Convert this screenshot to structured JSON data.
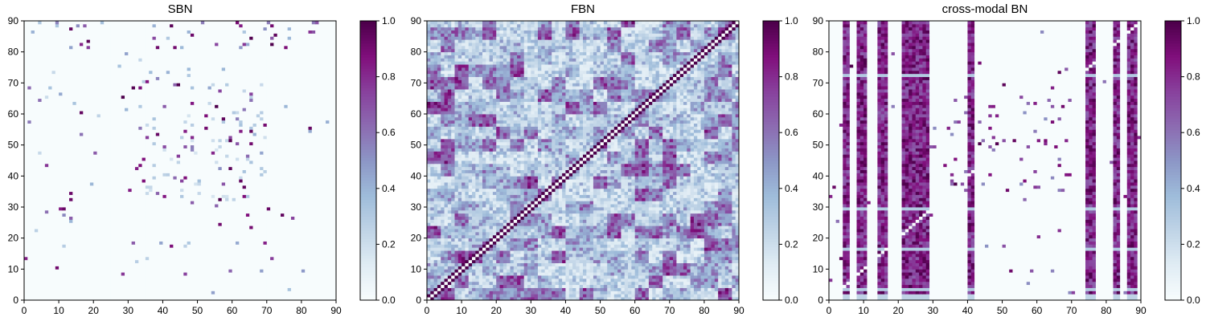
{
  "figure": {
    "background": "#ffffff"
  },
  "colormap": {
    "name": "BuPu",
    "stops": [
      [
        0.0,
        "#f7fcfd"
      ],
      [
        0.125,
        "#e0ecf4"
      ],
      [
        0.25,
        "#bfd3e6"
      ],
      [
        0.375,
        "#9ebcda"
      ],
      [
        0.5,
        "#8c96c6"
      ],
      [
        0.625,
        "#8c6bb1"
      ],
      [
        0.75,
        "#88419d"
      ],
      [
        0.875,
        "#810f7c"
      ],
      [
        1.0,
        "#4d004b"
      ]
    ]
  },
  "chart_data": [
    {
      "type": "heatmap",
      "title": "SBN",
      "xlim": [
        0,
        90
      ],
      "ylim": [
        0,
        90
      ],
      "xticks": [
        "0",
        "10",
        "20",
        "30",
        "40",
        "50",
        "60",
        "70",
        "80",
        "90"
      ],
      "yticks": [
        "0",
        "10",
        "20",
        "30",
        "40",
        "50",
        "60",
        "70",
        "80",
        "90"
      ],
      "vmin": 0,
      "vmax": 1,
      "colorbar_ticks": [
        "0.0",
        "0.2",
        "0.4",
        "0.6",
        "0.8",
        "1.0"
      ],
      "pattern": "sparse",
      "n": 90
    },
    {
      "type": "heatmap",
      "title": "FBN",
      "xlim": [
        0,
        90
      ],
      "ylim": [
        0,
        90
      ],
      "xticks": [
        "0",
        "10",
        "20",
        "30",
        "40",
        "50",
        "60",
        "70",
        "80",
        "90"
      ],
      "yticks": [
        "0",
        "10",
        "20",
        "30",
        "40",
        "50",
        "60",
        "70",
        "80",
        "90"
      ],
      "vmin": 0,
      "vmax": 1,
      "colorbar_ticks": [
        "0.0",
        "0.2",
        "0.4",
        "0.6",
        "0.8",
        "1.0"
      ],
      "pattern": "dense",
      "n": 90
    },
    {
      "type": "heatmap",
      "title": "cross-modal BN",
      "xlim": [
        0,
        90
      ],
      "ylim": [
        0,
        90
      ],
      "xticks": [
        "0",
        "10",
        "20",
        "30",
        "40",
        "50",
        "60",
        "70",
        "80",
        "90"
      ],
      "yticks": [
        "0",
        "10",
        "20",
        "30",
        "40",
        "50",
        "60",
        "70",
        "80",
        "90"
      ],
      "vmin": 0,
      "vmax": 1,
      "colorbar_ticks": [
        "0.0",
        "0.2",
        "0.4",
        "0.6",
        "0.8",
        "1.0"
      ],
      "pattern": "columns",
      "n": 90,
      "strong_columns": [
        [
          4,
          5
        ],
        [
          8,
          10
        ],
        [
          14,
          16
        ],
        [
          21,
          28
        ],
        [
          40,
          41
        ],
        [
          74,
          76
        ],
        [
          82,
          83
        ],
        [
          86,
          88
        ]
      ],
      "gap_rows": [
        3,
        16,
        29,
        72
      ]
    }
  ]
}
